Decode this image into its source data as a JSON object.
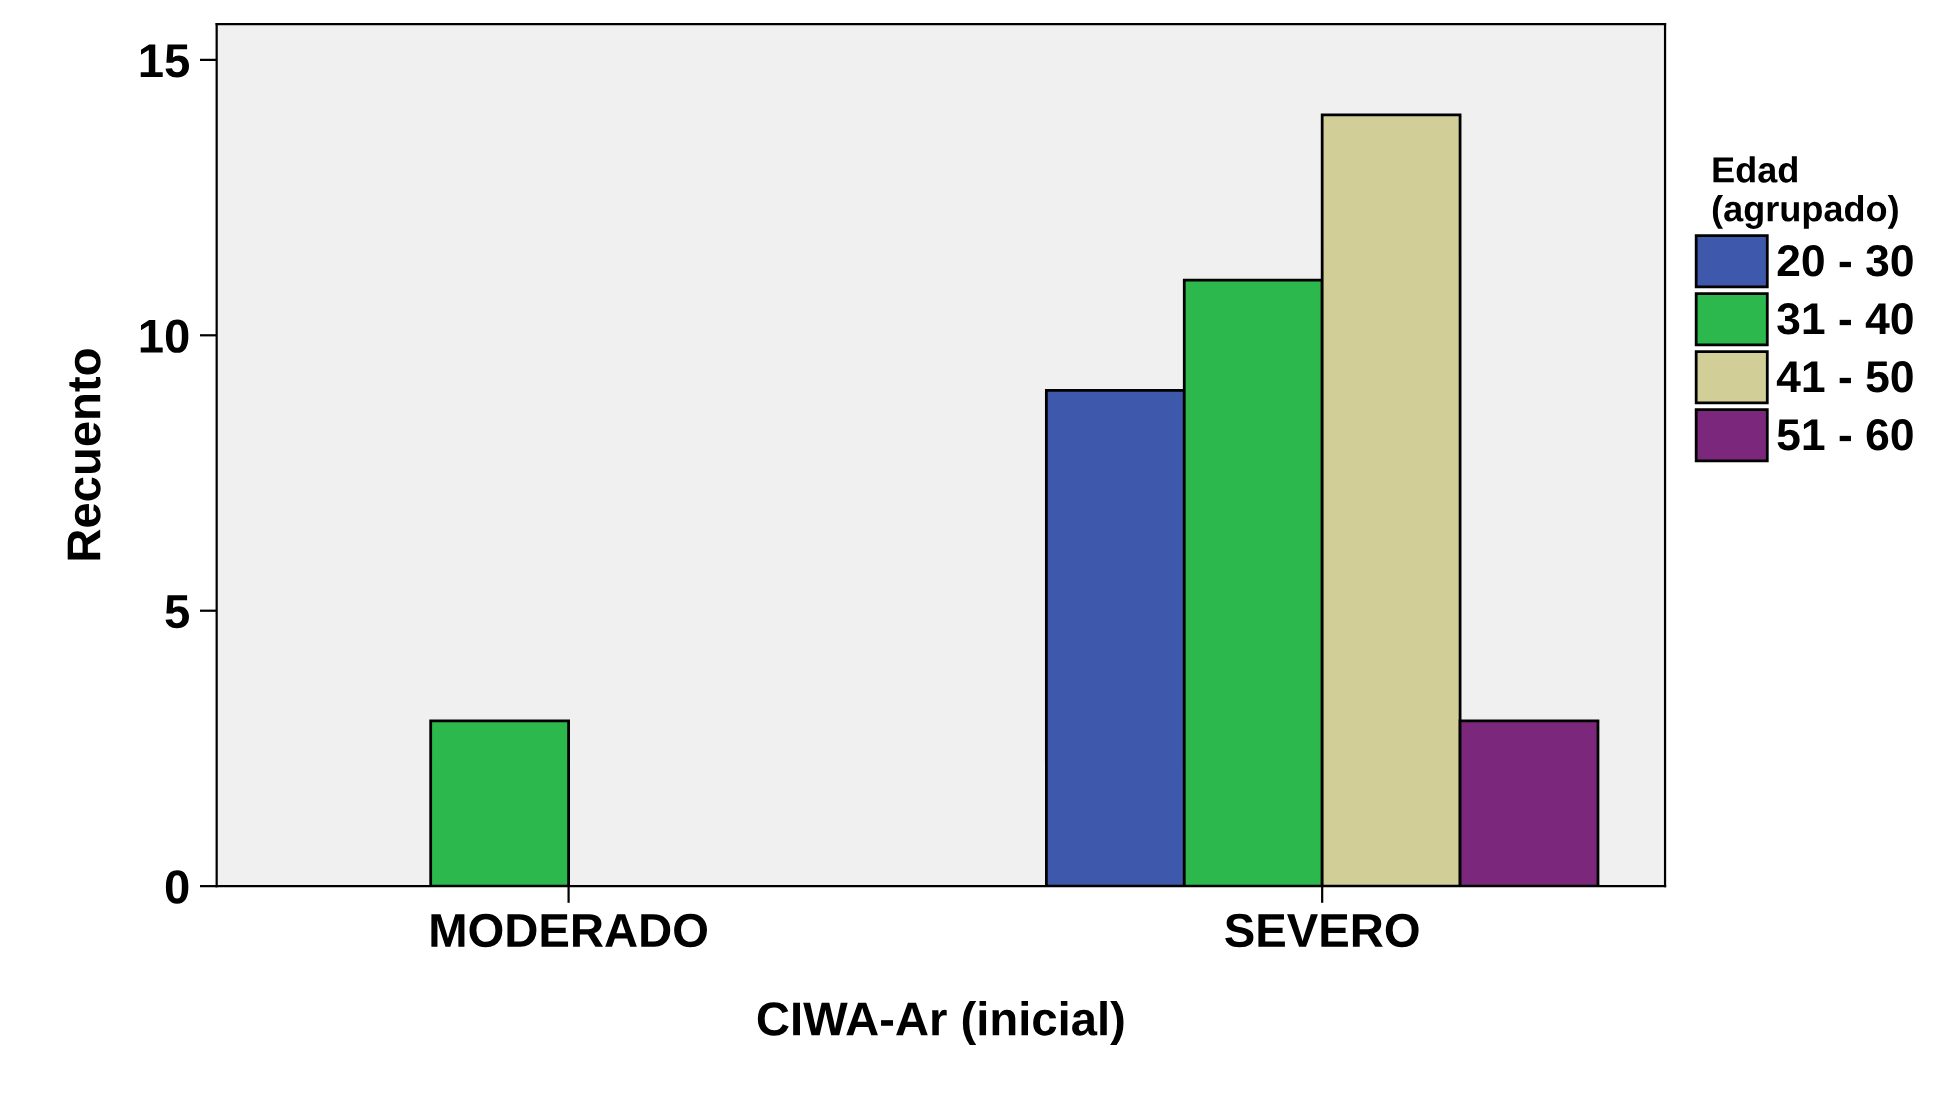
{
  "chart_data": {
    "type": "bar",
    "xlabel": "CIWA-Ar (inicial)",
    "ylabel": "Recuento",
    "legend_title": "Edad\n(agrupado)",
    "categories": [
      "MODERADO",
      "SEVERO"
    ],
    "series": [
      {
        "name": "20 - 30",
        "color": "#3e58ac",
        "values": [
          null,
          9
        ]
      },
      {
        "name": "31 - 40",
        "color": "#2db84d",
        "values": [
          3,
          11
        ]
      },
      {
        "name": "41 - 50",
        "color": "#d1cf97",
        "values": [
          null,
          14
        ]
      },
      {
        "name": "51 - 60",
        "color": "#7b287c",
        "values": [
          null,
          3
        ]
      }
    ],
    "ylim": [
      0,
      15.65
    ],
    "yticks": [
      0,
      5,
      10,
      15
    ],
    "grid": false,
    "legend": "right"
  }
}
